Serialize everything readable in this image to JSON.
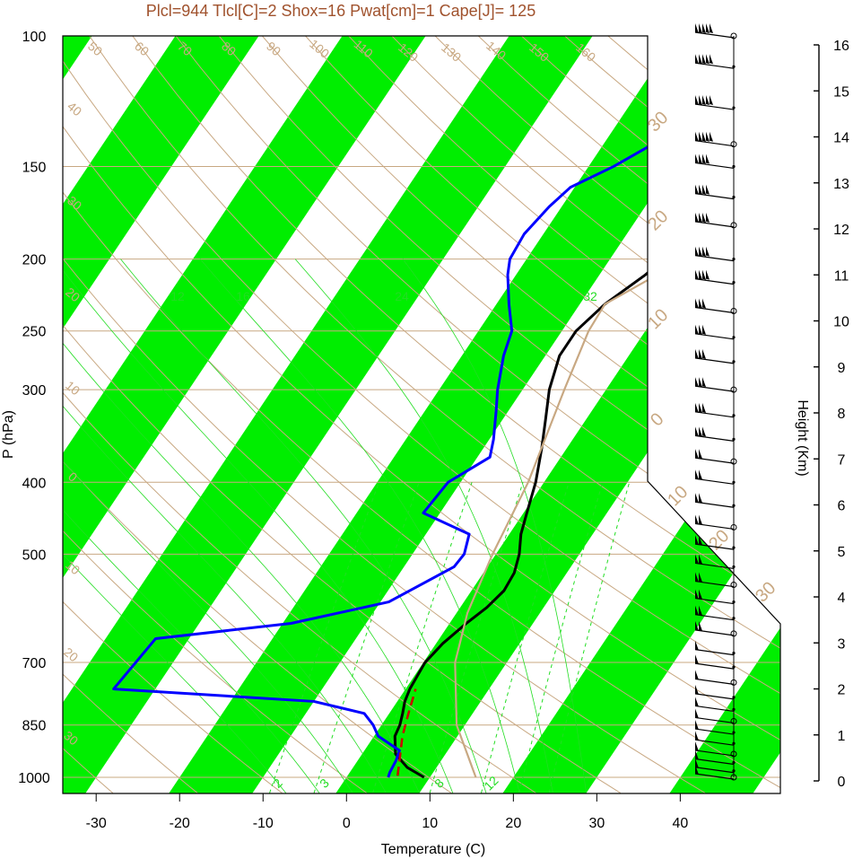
{
  "chart_data": {
    "type": "line",
    "title": "Plcl=944 Tlcl[C]=2 Shox=16 Pwat[cm]=1 Cape[J]= 125",
    "xlabel": "Temperature (C)",
    "ylabel": "P (hPa)",
    "y2label": "Height (Km)",
    "xlim": [
      -34,
      52
    ],
    "ylim_pressure": [
      1050,
      100
    ],
    "x_ticks": [
      -30,
      -20,
      -10,
      0,
      10,
      20,
      30,
      40
    ],
    "pressure_ticks": [
      100,
      150,
      200,
      250,
      300,
      400,
      500,
      700,
      850,
      1000
    ],
    "height_ticks": [
      0,
      1,
      2,
      3,
      4,
      5,
      6,
      7,
      8,
      9,
      10,
      11,
      12,
      13,
      14,
      15,
      16
    ],
    "dry_adiabat_labels": [
      "50",
      "60",
      "70",
      "80",
      "90",
      "100",
      "110",
      "120",
      "130",
      "140",
      "150",
      "160",
      "40",
      "30",
      "20",
      "10",
      "0",
      "10",
      "20",
      "30"
    ],
    "temp_line_labels": [
      "30",
      "20",
      "10",
      "0",
      "10",
      "20",
      "30"
    ],
    "mixing_ratio_top_labels": [
      "12",
      "16",
      "24",
      "32"
    ],
    "mixing_ratio_bottom_labels": [
      "2",
      "3",
      "8",
      "12"
    ],
    "series": [
      {
        "role": "temperature",
        "color": "#000000",
        "points": [
          [
            1000,
            9.3
          ],
          [
            970,
            6.5
          ],
          [
            930,
            4.0
          ],
          [
            880,
            2.5
          ],
          [
            850,
            2.2
          ],
          [
            820,
            1.6
          ],
          [
            790,
            0.9
          ],
          [
            760,
            0.5
          ],
          [
            700,
            0.2
          ],
          [
            660,
            0.8
          ],
          [
            620,
            2.0
          ],
          [
            590,
            3.2
          ],
          [
            560,
            3.9
          ],
          [
            530,
            3.7
          ],
          [
            500,
            2.8
          ],
          [
            470,
            1.4
          ],
          [
            440,
            0.4
          ],
          [
            400,
            -1.0
          ],
          [
            360,
            -3.0
          ],
          [
            330,
            -4.8
          ],
          [
            300,
            -6.8
          ],
          [
            270,
            -8.3
          ],
          [
            250,
            -8.3
          ],
          [
            230,
            -7.0
          ],
          [
            210,
            -4.5
          ],
          [
            190,
            -2.5
          ],
          [
            175,
            -1.6
          ],
          [
            160,
            -0.5
          ],
          [
            150,
            2.8
          ],
          [
            140,
            6.5
          ],
          [
            130,
            10.5
          ],
          [
            120,
            13.3
          ],
          [
            110,
            14.3
          ],
          [
            102,
            15.3
          ]
        ]
      },
      {
        "role": "dewpoint",
        "color": "#0000ff",
        "points": [
          [
            1000,
            5.0
          ],
          [
            985,
            4.8
          ],
          [
            950,
            4.6
          ],
          [
            920,
            4.2
          ],
          [
            880,
            0.5
          ],
          [
            850,
            -1.0
          ],
          [
            820,
            -3.0
          ],
          [
            790,
            -10.0
          ],
          [
            760,
            -35.0
          ],
          [
            650,
            -34.0
          ],
          [
            620,
            -19.0
          ],
          [
            580,
            -9.0
          ],
          [
            520,
            -4.0
          ],
          [
            500,
            -3.8
          ],
          [
            470,
            -4.8
          ],
          [
            440,
            -12.0
          ],
          [
            400,
            -11.5
          ],
          [
            370,
            -8.5
          ],
          [
            350,
            -9.5
          ],
          [
            320,
            -11.5
          ],
          [
            300,
            -13.0
          ],
          [
            270,
            -15.0
          ],
          [
            250,
            -16.0
          ],
          [
            230,
            -18.5
          ],
          [
            210,
            -21.0
          ],
          [
            200,
            -22.0
          ],
          [
            185,
            -22.3
          ],
          [
            170,
            -21.5
          ],
          [
            160,
            -20.5
          ],
          [
            150,
            -17.0
          ],
          [
            130,
            -11.0
          ],
          [
            115,
            -7.5
          ],
          [
            103,
            -5.5
          ]
        ]
      },
      {
        "role": "parcel",
        "color": "#c8a882",
        "points": [
          [
            1000,
            15.5
          ],
          [
            850,
            9.0
          ],
          [
            700,
            3.8
          ],
          [
            600,
            1.3
          ],
          [
            500,
            -0.4
          ],
          [
            400,
            -1.9
          ],
          [
            300,
            -5.0
          ],
          [
            250,
            -6.8
          ],
          [
            230,
            -7.0
          ],
          [
            200,
            -1.0
          ],
          [
            170,
            3.5
          ],
          [
            150,
            6.5
          ],
          [
            125,
            11.0
          ],
          [
            110,
            14.0
          ],
          [
            103,
            16.5
          ]
        ]
      },
      {
        "role": "lifted-parcel-dashed",
        "color": "#cc0000",
        "points": [
          [
            995,
            6.0
          ],
          [
            940,
            4.8
          ],
          [
            880,
            3.4
          ],
          [
            820,
            2.3
          ],
          [
            760,
            1.2
          ]
        ]
      }
    ],
    "wind_barbs": [
      {
        "p": 100,
        "speed": 55
      },
      {
        "p": 110,
        "speed": 50
      },
      {
        "p": 125,
        "speed": 45
      },
      {
        "p": 140,
        "speed": 45
      },
      {
        "p": 150,
        "speed": 40
      },
      {
        "p": 165,
        "speed": 40
      },
      {
        "p": 180,
        "speed": 40
      },
      {
        "p": 200,
        "speed": 35
      },
      {
        "p": 215,
        "speed": 35
      },
      {
        "p": 235,
        "speed": 30
      },
      {
        "p": 255,
        "speed": 30
      },
      {
        "p": 275,
        "speed": 30
      },
      {
        "p": 300,
        "speed": 30
      },
      {
        "p": 325,
        "speed": 25
      },
      {
        "p": 350,
        "speed": 25
      },
      {
        "p": 375,
        "speed": 20
      },
      {
        "p": 400,
        "speed": 20
      },
      {
        "p": 430,
        "speed": 15
      },
      {
        "p": 460,
        "speed": 15
      },
      {
        "p": 490,
        "speed": 15
      },
      {
        "p": 520,
        "speed": 15
      },
      {
        "p": 550,
        "speed": 15
      },
      {
        "p": 580,
        "speed": 15
      },
      {
        "p": 610,
        "speed": 15
      },
      {
        "p": 640,
        "speed": 15
      },
      {
        "p": 680,
        "speed": 10
      },
      {
        "p": 710,
        "speed": 10
      },
      {
        "p": 745,
        "speed": 10
      },
      {
        "p": 780,
        "speed": 10
      },
      {
        "p": 810,
        "speed": 10
      },
      {
        "p": 840,
        "speed": 10
      },
      {
        "p": 870,
        "speed": 10
      },
      {
        "p": 900,
        "speed": 10
      },
      {
        "p": 930,
        "speed": 10
      },
      {
        "p": 955,
        "speed": 10
      },
      {
        "p": 980,
        "speed": 10
      },
      {
        "p": 1000,
        "speed": 10
      }
    ],
    "colors": {
      "band": "#00ee00",
      "isobar": "#c8a882",
      "adiabat": "#c8a882",
      "mixing": "#22dd22",
      "title": "#a0522d"
    }
  }
}
